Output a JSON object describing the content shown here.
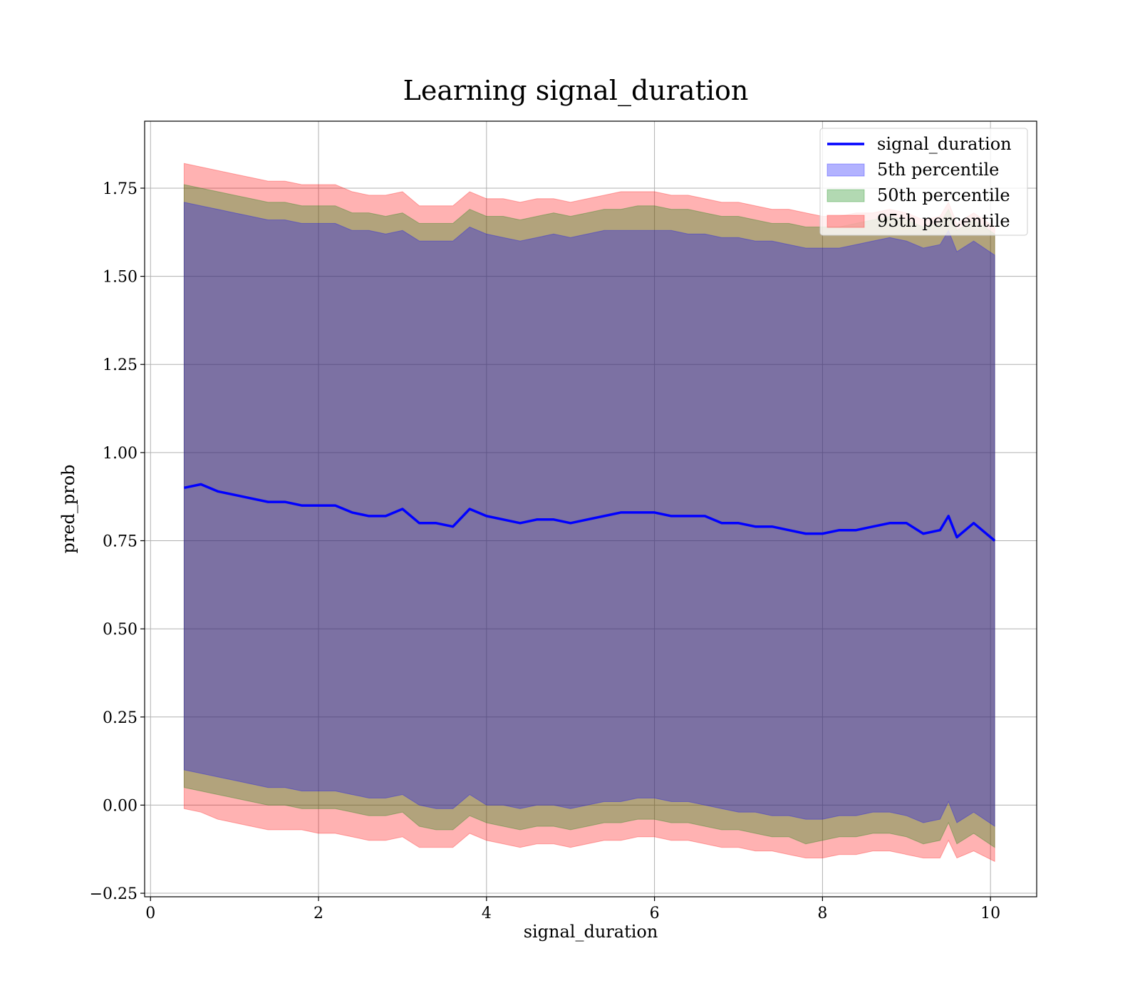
{
  "chart_data": {
    "type": "area",
    "title": "Learning signal_duration",
    "xlabel": "signal_duration",
    "ylabel": "pred_prob",
    "xlim": [
      -0.07,
      10.55
    ],
    "ylim": [
      -0.26,
      1.94
    ],
    "x_ticks": [
      0,
      2,
      4,
      6,
      8,
      10
    ],
    "x_tick_labels": [
      "0",
      "2",
      "4",
      "6",
      "8",
      "10"
    ],
    "y_ticks": [
      -0.25,
      0.0,
      0.25,
      0.5,
      0.75,
      1.0,
      1.25,
      1.5,
      1.75
    ],
    "y_tick_labels": [
      "−0.25",
      "0.00",
      "0.25",
      "0.50",
      "0.75",
      "1.00",
      "1.25",
      "1.50",
      "1.75"
    ],
    "grid": true,
    "legend_position": "top-right",
    "colors": {
      "line": "#0000ff",
      "band_5th": "#0000ff",
      "band_50th": "#008000",
      "band_95th": "#ff0000"
    },
    "x": [
      0.4,
      0.6,
      0.8,
      1.0,
      1.2,
      1.4,
      1.6,
      1.8,
      2.0,
      2.2,
      2.4,
      2.6,
      2.8,
      3.0,
      3.2,
      3.4,
      3.6,
      3.8,
      4.0,
      4.2,
      4.4,
      4.6,
      4.8,
      5.0,
      5.2,
      5.4,
      5.6,
      5.8,
      6.0,
      6.2,
      6.4,
      6.6,
      6.8,
      7.0,
      7.2,
      7.4,
      7.6,
      7.8,
      8.0,
      8.2,
      8.4,
      8.6,
      8.8,
      9.0,
      9.2,
      9.4,
      9.5,
      9.6,
      9.8,
      10.05
    ],
    "series": [
      {
        "name": "signal_duration",
        "values": [
          0.9,
          0.91,
          0.89,
          0.88,
          0.87,
          0.86,
          0.86,
          0.85,
          0.85,
          0.85,
          0.83,
          0.82,
          0.82,
          0.84,
          0.8,
          0.8,
          0.79,
          0.84,
          0.82,
          0.81,
          0.8,
          0.81,
          0.81,
          0.8,
          0.81,
          0.82,
          0.83,
          0.83,
          0.83,
          0.82,
          0.82,
          0.82,
          0.8,
          0.8,
          0.79,
          0.79,
          0.78,
          0.77,
          0.77,
          0.78,
          0.78,
          0.79,
          0.8,
          0.8,
          0.77,
          0.78,
          0.82,
          0.76,
          0.8,
          0.75
        ]
      },
      {
        "name": "5th percentile",
        "lower": [
          0.1,
          0.09,
          0.08,
          0.07,
          0.06,
          0.05,
          0.05,
          0.04,
          0.04,
          0.04,
          0.03,
          0.02,
          0.02,
          0.03,
          0.0,
          -0.01,
          -0.01,
          0.03,
          0.0,
          0.0,
          -0.01,
          0.0,
          0.0,
          -0.01,
          0.0,
          0.01,
          0.01,
          0.02,
          0.02,
          0.01,
          0.01,
          0.0,
          -0.01,
          -0.02,
          -0.02,
          -0.03,
          -0.03,
          -0.04,
          -0.04,
          -0.03,
          -0.03,
          -0.02,
          -0.02,
          -0.03,
          -0.05,
          -0.04,
          0.01,
          -0.05,
          -0.02,
          -0.06
        ],
        "upper": [
          1.71,
          1.7,
          1.69,
          1.68,
          1.67,
          1.66,
          1.66,
          1.65,
          1.65,
          1.65,
          1.63,
          1.63,
          1.62,
          1.63,
          1.6,
          1.6,
          1.6,
          1.64,
          1.62,
          1.61,
          1.6,
          1.61,
          1.62,
          1.61,
          1.62,
          1.63,
          1.63,
          1.63,
          1.63,
          1.63,
          1.62,
          1.62,
          1.61,
          1.61,
          1.6,
          1.6,
          1.59,
          1.58,
          1.58,
          1.58,
          1.59,
          1.6,
          1.61,
          1.6,
          1.58,
          1.59,
          1.63,
          1.57,
          1.6,
          1.56
        ]
      },
      {
        "name": "50th percentile",
        "lower": [
          0.05,
          0.04,
          0.03,
          0.02,
          0.01,
          0.0,
          0.0,
          -0.01,
          -0.01,
          -0.01,
          -0.02,
          -0.03,
          -0.03,
          -0.02,
          -0.06,
          -0.07,
          -0.07,
          -0.03,
          -0.05,
          -0.06,
          -0.07,
          -0.06,
          -0.06,
          -0.07,
          -0.06,
          -0.05,
          -0.05,
          -0.04,
          -0.04,
          -0.05,
          -0.05,
          -0.06,
          -0.07,
          -0.07,
          -0.08,
          -0.09,
          -0.09,
          -0.11,
          -0.1,
          -0.09,
          -0.09,
          -0.08,
          -0.08,
          -0.09,
          -0.11,
          -0.1,
          -0.05,
          -0.11,
          -0.08,
          -0.12
        ],
        "upper": [
          1.76,
          1.75,
          1.74,
          1.73,
          1.72,
          1.71,
          1.71,
          1.7,
          1.7,
          1.7,
          1.68,
          1.68,
          1.67,
          1.68,
          1.65,
          1.65,
          1.65,
          1.69,
          1.67,
          1.67,
          1.66,
          1.67,
          1.68,
          1.67,
          1.68,
          1.69,
          1.69,
          1.7,
          1.7,
          1.69,
          1.69,
          1.68,
          1.67,
          1.67,
          1.66,
          1.65,
          1.65,
          1.64,
          1.64,
          1.64,
          1.65,
          1.66,
          1.67,
          1.66,
          1.64,
          1.65,
          1.69,
          1.63,
          1.66,
          1.62
        ]
      },
      {
        "name": "95th percentile",
        "lower": [
          -0.01,
          -0.02,
          -0.04,
          -0.05,
          -0.06,
          -0.07,
          -0.07,
          -0.07,
          -0.08,
          -0.08,
          -0.09,
          -0.1,
          -0.1,
          -0.09,
          -0.12,
          -0.12,
          -0.12,
          -0.08,
          -0.1,
          -0.11,
          -0.12,
          -0.11,
          -0.11,
          -0.12,
          -0.11,
          -0.1,
          -0.1,
          -0.09,
          -0.09,
          -0.1,
          -0.1,
          -0.11,
          -0.12,
          -0.12,
          -0.13,
          -0.13,
          -0.14,
          -0.15,
          -0.15,
          -0.14,
          -0.14,
          -0.13,
          -0.13,
          -0.14,
          -0.15,
          -0.15,
          -0.1,
          -0.15,
          -0.13,
          -0.16
        ],
        "upper": [
          1.82,
          1.81,
          1.8,
          1.79,
          1.78,
          1.77,
          1.77,
          1.76,
          1.76,
          1.76,
          1.74,
          1.73,
          1.73,
          1.74,
          1.7,
          1.7,
          1.7,
          1.74,
          1.72,
          1.72,
          1.71,
          1.72,
          1.72,
          1.71,
          1.72,
          1.73,
          1.74,
          1.74,
          1.74,
          1.73,
          1.73,
          1.72,
          1.71,
          1.71,
          1.7,
          1.69,
          1.69,
          1.68,
          1.67,
          1.67,
          1.68,
          1.68,
          1.69,
          1.68,
          1.66,
          1.67,
          1.71,
          1.65,
          1.68,
          1.64
        ]
      }
    ],
    "legend": [
      {
        "label": "signal_duration",
        "kind": "line",
        "color": "#0000ff"
      },
      {
        "label": "5th percentile",
        "kind": "patch",
        "color": "#0000ff"
      },
      {
        "label": "50th percentile",
        "kind": "patch",
        "color": "#008000"
      },
      {
        "label": "95th percentile",
        "kind": "patch",
        "color": "#ff0000"
      }
    ]
  }
}
